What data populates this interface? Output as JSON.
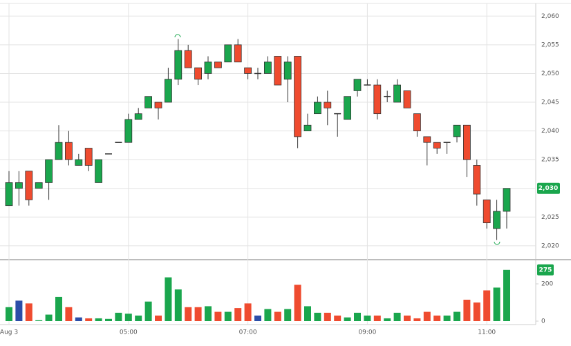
{
  "chart_data": [
    {
      "type": "candlestick",
      "categories": [
        "Aug 3",
        null,
        null,
        null,
        null,
        null,
        null,
        null,
        null,
        null,
        null,
        null,
        "05:00",
        null,
        null,
        null,
        null,
        null,
        null,
        null,
        null,
        null,
        null,
        null,
        "07:00",
        null,
        null,
        null,
        null,
        null,
        null,
        null,
        null,
        null,
        null,
        null,
        "09:00",
        null,
        null,
        null,
        null,
        null,
        null,
        null,
        null,
        null,
        null,
        null,
        "11:00",
        null,
        null
      ],
      "open": [
        2027,
        2030,
        2033,
        2030,
        2031,
        2035,
        2038,
        2034,
        2037,
        2031,
        2036,
        2038,
        2038,
        2042,
        2044,
        2045,
        2045,
        2049,
        2054,
        2051,
        2050,
        2052,
        2052,
        2055,
        2051,
        2050,
        2050,
        2053,
        2049,
        2053,
        2040,
        2043,
        2045,
        2043,
        2042,
        2047,
        2048,
        2048,
        2046,
        2045,
        2047,
        2043,
        2039,
        2038,
        2038,
        2039,
        2041,
        2034,
        2028,
        2023,
        2026
      ],
      "high": [
        2033,
        2033,
        2033,
        2031,
        2035,
        2041,
        2040,
        2036,
        2037,
        2035,
        2036,
        2038,
        2043,
        2044,
        2046,
        2045,
        2051,
        2056,
        2055,
        2051,
        2053,
        2052,
        2055,
        2056,
        2051,
        2051,
        2053,
        2053,
        2053,
        2053,
        2043,
        2046,
        2047,
        2043,
        2046,
        2049,
        2049,
        2049,
        2047,
        2049,
        2047,
        2043,
        2039,
        2038,
        2038,
        2041,
        2041,
        2035,
        2028,
        2028,
        2030
      ],
      "low": [
        2027,
        2027,
        2027,
        2030,
        2028,
        2035,
        2034,
        2034,
        2033,
        2031,
        2036,
        2038,
        2038,
        2042,
        2044,
        2042,
        2045,
        2048,
        2051,
        2048,
        2049,
        2051,
        2052,
        2052,
        2049,
        2049,
        2050,
        2048,
        2045,
        2037,
        2040,
        2043,
        2041,
        2039,
        2042,
        2046,
        2048,
        2042,
        2045,
        2045,
        2044,
        2039,
        2034,
        2036,
        2036,
        2038,
        2032,
        2027,
        2023,
        2021,
        2023
      ],
      "close": [
        2031,
        2031,
        2028,
        2031,
        2035,
        2038,
        2035,
        2035,
        2034,
        2035,
        2036,
        2038,
        2042,
        2043,
        2046,
        2044,
        2049,
        2054,
        2051,
        2049,
        2052,
        2051,
        2055,
        2052,
        2050,
        2050,
        2052,
        2048,
        2052,
        2039,
        2041,
        2045,
        2044,
        2043,
        2046,
        2049,
        2048,
        2043,
        2046,
        2048,
        2044,
        2040,
        2038,
        2037,
        2038,
        2041,
        2035,
        2029,
        2024,
        2026,
        2030
      ],
      "up_color": "#1aa64d",
      "down_color": "#ef4b2f",
      "flat_color": "#333333",
      "ylim": [
        2017.7,
        2062.2
      ],
      "yticks": [
        {
          "value": 2020,
          "label": "2,020"
        },
        {
          "value": 2025,
          "label": "2,025"
        },
        {
          "value": 2030,
          "label": "2,030"
        },
        {
          "value": 2035,
          "label": "2,035"
        },
        {
          "value": 2040,
          "label": "2,040"
        },
        {
          "value": 2045,
          "label": "2,045"
        },
        {
          "value": 2050,
          "label": "2,050"
        },
        {
          "value": 2055,
          "label": "2,055"
        },
        {
          "value": 2060,
          "label": "2,060"
        }
      ],
      "last_price": {
        "value": 2030,
        "label": "2,030"
      },
      "grid": true
    },
    {
      "type": "bar",
      "values": [
        75,
        110,
        95,
        5,
        35,
        130,
        75,
        20,
        15,
        15,
        12,
        45,
        40,
        30,
        105,
        30,
        235,
        170,
        75,
        75,
        80,
        50,
        50,
        70,
        95,
        30,
        65,
        50,
        65,
        195,
        80,
        45,
        45,
        30,
        20,
        45,
        30,
        30,
        15,
        45,
        30,
        15,
        50,
        30,
        30,
        50,
        115,
        100,
        165,
        180,
        275
      ],
      "colors": [
        "#1aa64d",
        "#2b4ea8",
        "#ef4b2f",
        "#1aa64d",
        "#1aa64d",
        "#1aa64d",
        "#ef4b2f",
        "#2b4ea8",
        "#ef4b2f",
        "#1aa64d",
        "#1aa64d",
        "#1aa64d",
        "#1aa64d",
        "#1aa64d",
        "#1aa64d",
        "#ef4b2f",
        "#1aa64d",
        "#1aa64d",
        "#ef4b2f",
        "#ef4b2f",
        "#1aa64d",
        "#ef4b2f",
        "#1aa64d",
        "#ef4b2f",
        "#ef4b2f",
        "#2b4ea8",
        "#1aa64d",
        "#ef4b2f",
        "#1aa64d",
        "#ef4b2f",
        "#1aa64d",
        "#1aa64d",
        "#ef4b2f",
        "#ef4b2f",
        "#1aa64d",
        "#1aa64d",
        "#1aa64d",
        "#ef4b2f",
        "#1aa64d",
        "#1aa64d",
        "#ef4b2f",
        "#ef4b2f",
        "#ef4b2f",
        "#ef4b2f",
        "#1aa64d",
        "#1aa64d",
        "#ef4b2f",
        "#ef4b2f",
        "#ef4b2f",
        "#1aa64d",
        "#1aa64d"
      ],
      "ylim": [
        0,
        315
      ],
      "yticks": [
        0,
        200
      ],
      "badge_color": "#1aa64d"
    }
  ]
}
